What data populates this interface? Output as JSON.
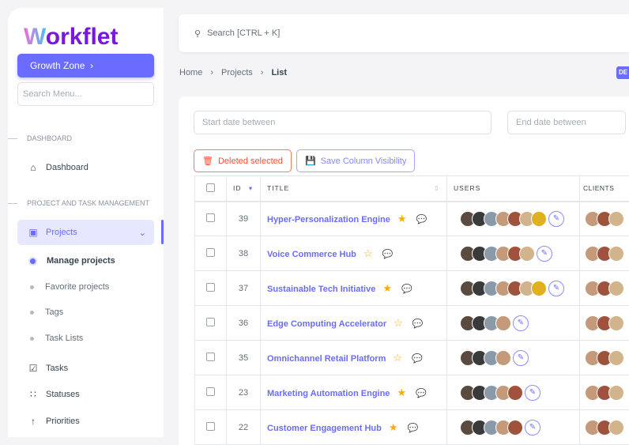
{
  "sidebar": {
    "logo": "Workflet",
    "growth_zone": "Growth Zone",
    "search_placeholder": "Search Menu...",
    "sections": [
      "Dashboard",
      "Project and Task Management"
    ],
    "dashboard": "Dashboard",
    "projects": "Projects",
    "sub_items": [
      "Manage projects",
      "Favorite projects",
      "Tags",
      "Task Lists"
    ],
    "items": [
      "Tasks",
      "Statuses",
      "Priorities"
    ]
  },
  "search": {
    "placeholder": "Search [CTRL + K]"
  },
  "breadcrumb": [
    "Home",
    "Projects",
    "List"
  ],
  "badge": "DE",
  "filters": {
    "start": "Start date between",
    "end": "End date between"
  },
  "buttons": {
    "delete": "Deleted selected",
    "save_cols": "Save Column Visibility"
  },
  "table": {
    "headers": [
      "ID",
      "TITLE",
      "USERS",
      "CLIENTS"
    ],
    "rows": [
      {
        "id": "39",
        "title": "Hyper-Personalization Engine",
        "favorite": true,
        "users": 7,
        "clients": 3
      },
      {
        "id": "38",
        "title": "Voice Commerce Hub",
        "favorite": false,
        "users": 6,
        "clients": 3
      },
      {
        "id": "37",
        "title": "Sustainable Tech Initiative",
        "favorite": true,
        "users": 7,
        "clients": 3
      },
      {
        "id": "36",
        "title": "Edge Computing Accelerator",
        "favorite": false,
        "users": 4,
        "clients": 3
      },
      {
        "id": "35",
        "title": "Omnichannel Retail Platform",
        "favorite": false,
        "users": 4,
        "clients": 3
      },
      {
        "id": "23",
        "title": "Marketing Automation Engine",
        "favorite": true,
        "users": 5,
        "clients": 3
      },
      {
        "id": "22",
        "title": "Customer Engagement Hub",
        "favorite": true,
        "users": 5,
        "clients": 3
      }
    ]
  },
  "colors": {
    "primary": "#696cff",
    "danger": "#ff4d2e",
    "star": "#ffab00"
  }
}
